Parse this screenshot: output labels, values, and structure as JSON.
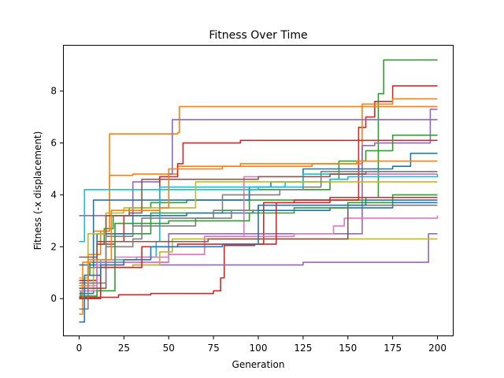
{
  "chart_data": {
    "type": "line",
    "title": "Fitness Over Time",
    "xlabel": "Generation",
    "ylabel": "Fitness (-x displacement)",
    "xlim": [
      -9,
      209
    ],
    "ylim": [
      -1.45,
      9.75
    ],
    "x_ticks": [
      0,
      25,
      50,
      75,
      100,
      125,
      150,
      175,
      200
    ],
    "y_ticks": [
      0,
      2,
      4,
      6,
      8
    ],
    "grid": false,
    "legend": "none",
    "step": "post",
    "series": [
      {
        "color": "#2ca02c",
        "points": [
          [
            0,
            0
          ],
          [
            1,
            0.3
          ],
          [
            3,
            0.9
          ],
          [
            6,
            1.4
          ],
          [
            10,
            2.1
          ],
          [
            14,
            2.7
          ],
          [
            19,
            3.2
          ],
          [
            28,
            3.5
          ],
          [
            40,
            3.7
          ],
          [
            60,
            3.8
          ],
          [
            100,
            3.8
          ],
          [
            140,
            3.8
          ],
          [
            160,
            3.9
          ],
          [
            167,
            7.9
          ],
          [
            170,
            9.2
          ],
          [
            200,
            9.2
          ]
        ]
      },
      {
        "color": "#d62728",
        "points": [
          [
            0,
            0.05
          ],
          [
            20,
            0.05
          ],
          [
            22,
            0.15
          ],
          [
            40,
            0.2
          ],
          [
            60,
            0.2
          ],
          [
            75,
            0.3
          ],
          [
            79,
            0.8
          ],
          [
            81,
            2.05
          ],
          [
            98,
            2.1
          ],
          [
            103,
            3.7
          ],
          [
            120,
            3.8
          ],
          [
            150,
            3.8
          ],
          [
            156,
            6.6
          ],
          [
            160,
            7.0
          ],
          [
            165,
            7.6
          ],
          [
            175,
            8.2
          ],
          [
            200,
            8.2
          ]
        ]
      },
      {
        "color": "#ff7f0e",
        "points": [
          [
            0,
            -0.6
          ],
          [
            2,
            1.4
          ],
          [
            8,
            2.6
          ],
          [
            15,
            3.3
          ],
          [
            17,
            6.35
          ],
          [
            55,
            6.4
          ],
          [
            56,
            7.4
          ],
          [
            200,
            7.4
          ]
        ]
      },
      {
        "color": "#ff7f0e",
        "points": [
          [
            0,
            0.5
          ],
          [
            5,
            1.7
          ],
          [
            12,
            2.6
          ],
          [
            17,
            4.75
          ],
          [
            30,
            4.8
          ],
          [
            50,
            4.8
          ],
          [
            55,
            5.1
          ],
          [
            90,
            5.2
          ],
          [
            155,
            5.2
          ],
          [
            158,
            7.5
          ],
          [
            175,
            7.7
          ],
          [
            200,
            7.7
          ]
        ]
      },
      {
        "color": "#9467bd",
        "points": [
          [
            0,
            3.2
          ],
          [
            20,
            3.2
          ],
          [
            30,
            4.5
          ],
          [
            45,
            4.7
          ],
          [
            50,
            4.8
          ],
          [
            52,
            6.9
          ],
          [
            80,
            6.9
          ],
          [
            160,
            6.9
          ],
          [
            200,
            6.9
          ]
        ]
      },
      {
        "color": "#9467bd",
        "points": [
          [
            0,
            0.3
          ],
          [
            10,
            1.4
          ],
          [
            40,
            1.4
          ],
          [
            50,
            2.5
          ],
          [
            150,
            2.5
          ],
          [
            158,
            5.9
          ],
          [
            165,
            6.0
          ],
          [
            195,
            6.0
          ],
          [
            196,
            7.3
          ],
          [
            200,
            7.3
          ]
        ]
      },
      {
        "color": "#9467bd",
        "points": [
          [
            0,
            0.6
          ],
          [
            10,
            1.2
          ],
          [
            30,
            1.3
          ],
          [
            60,
            1.3
          ],
          [
            100,
            1.3
          ],
          [
            125,
            1.4
          ],
          [
            185,
            1.4
          ],
          [
            195,
            2.5
          ],
          [
            200,
            2.5
          ]
        ]
      },
      {
        "color": "#d62728",
        "points": [
          [
            0,
            0.7
          ],
          [
            10,
            2.2
          ],
          [
            25,
            3.2
          ],
          [
            45,
            4.7
          ],
          [
            55,
            5.2
          ],
          [
            58,
            6.0
          ],
          [
            90,
            6.1
          ],
          [
            160,
            6.1
          ],
          [
            200,
            6.1
          ]
        ]
      },
      {
        "color": "#2ca02c",
        "points": [
          [
            0,
            0
          ],
          [
            10,
            2.5
          ],
          [
            40,
            3.3
          ],
          [
            80,
            3.4
          ],
          [
            95,
            4.2
          ],
          [
            140,
            4.6
          ],
          [
            145,
            5.3
          ],
          [
            160,
            5.7
          ],
          [
            175,
            6.3
          ],
          [
            200,
            6.3
          ]
        ]
      },
      {
        "color": "#1f77b4",
        "points": [
          [
            0,
            0.2
          ],
          [
            8,
            3.8
          ],
          [
            40,
            3.8
          ],
          [
            95,
            4.3
          ],
          [
            107,
            4.5
          ],
          [
            125,
            5.0
          ],
          [
            175,
            5.1
          ],
          [
            185,
            5.6
          ],
          [
            200,
            5.6
          ]
        ]
      },
      {
        "color": "#1f77b4",
        "points": [
          [
            0,
            1.3
          ],
          [
            10,
            2.5
          ],
          [
            30,
            3.2
          ],
          [
            60,
            3.3
          ],
          [
            97,
            3.4
          ],
          [
            140,
            3.5
          ],
          [
            175,
            3.7
          ],
          [
            200,
            3.7
          ]
        ]
      },
      {
        "color": "#17becf",
        "points": [
          [
            0,
            2.2
          ],
          [
            3,
            4.2
          ],
          [
            15,
            4.2
          ],
          [
            60,
            4.2
          ],
          [
            100,
            4.3
          ],
          [
            115,
            4.5
          ],
          [
            140,
            4.6
          ],
          [
            150,
            4.7
          ],
          [
            200,
            4.8
          ]
        ]
      },
      {
        "color": "#17becf",
        "points": [
          [
            0,
            0.4
          ],
          [
            12,
            1.5
          ],
          [
            32,
            1.6
          ],
          [
            43,
            2.2
          ],
          [
            45,
            4.3
          ],
          [
            100,
            4.3
          ],
          [
            125,
            4.8
          ],
          [
            200,
            4.8
          ]
        ]
      },
      {
        "color": "#bcbd22",
        "points": [
          [
            0,
            0.8
          ],
          [
            5,
            2.5
          ],
          [
            15,
            3.3
          ],
          [
            25,
            3.5
          ],
          [
            50,
            3.5
          ],
          [
            65,
            4.5
          ],
          [
            100,
            4.5
          ],
          [
            150,
            4.5
          ],
          [
            200,
            4.5
          ]
        ]
      },
      {
        "color": "#bcbd22",
        "points": [
          [
            0,
            0.3
          ],
          [
            8,
            1.2
          ],
          [
            30,
            1.3
          ],
          [
            45,
            1.8
          ],
          [
            52,
            2.3
          ],
          [
            110,
            2.3
          ],
          [
            150,
            2.3
          ],
          [
            200,
            2.3
          ]
        ]
      },
      {
        "color": "#e377c2",
        "points": [
          [
            0,
            0.3
          ],
          [
            10,
            1.5
          ],
          [
            20,
            1.6
          ],
          [
            50,
            1.7
          ],
          [
            70,
            2.4
          ],
          [
            90,
            2.4
          ],
          [
            92,
            4.7
          ],
          [
            100,
            4.7
          ],
          [
            140,
            4.8
          ],
          [
            160,
            4.8
          ],
          [
            200,
            4.8
          ]
        ]
      },
      {
        "color": "#e377c2",
        "points": [
          [
            0,
            0.5
          ],
          [
            10,
            1.3
          ],
          [
            25,
            1.4
          ],
          [
            40,
            1.4
          ],
          [
            50,
            1.7
          ],
          [
            70,
            2.4
          ],
          [
            100,
            2.4
          ],
          [
            120,
            2.5
          ],
          [
            142,
            2.8
          ],
          [
            148,
            3.1
          ],
          [
            175,
            3.1
          ],
          [
            200,
            3.2
          ]
        ]
      },
      {
        "color": "#8c564b",
        "points": [
          [
            0,
            0.4
          ],
          [
            15,
            3.2
          ],
          [
            28,
            3.3
          ],
          [
            35,
            4.6
          ],
          [
            100,
            4.7
          ],
          [
            140,
            4.8
          ],
          [
            160,
            4.9
          ],
          [
            185,
            4.9
          ],
          [
            200,
            4.9
          ]
        ]
      },
      {
        "color": "#8c564b",
        "points": [
          [
            0,
            1.6
          ],
          [
            10,
            2.1
          ],
          [
            20,
            2.2
          ],
          [
            55,
            2.2
          ],
          [
            72,
            2.3
          ],
          [
            100,
            2.3
          ],
          [
            135,
            2.3
          ],
          [
            150,
            3.6
          ],
          [
            200,
            3.6
          ]
        ]
      },
      {
        "color": "#7f7f7f",
        "points": [
          [
            0,
            0.6
          ],
          [
            15,
            2.4
          ],
          [
            30,
            2.8
          ],
          [
            52,
            2.8
          ],
          [
            65,
            3.1
          ],
          [
            75,
            3.4
          ],
          [
            80,
            4.0
          ],
          [
            100,
            4.0
          ],
          [
            112,
            4.2
          ],
          [
            125,
            4.3
          ],
          [
            135,
            4.9
          ],
          [
            160,
            4.9
          ],
          [
            200,
            4.9
          ]
        ]
      },
      {
        "color": "#7f7f7f",
        "points": [
          [
            0,
            -0.4
          ],
          [
            5,
            1.2
          ],
          [
            15,
            2.0
          ],
          [
            30,
            2.3
          ],
          [
            35,
            3.1
          ],
          [
            70,
            3.1
          ],
          [
            85,
            3.4
          ],
          [
            100,
            3.6
          ],
          [
            200,
            3.6
          ]
        ]
      },
      {
        "color": "#2ca02c",
        "points": [
          [
            0,
            0.1
          ],
          [
            10,
            0.3
          ],
          [
            20,
            2.9
          ],
          [
            35,
            2.9
          ],
          [
            50,
            3.0
          ],
          [
            75,
            3.0
          ],
          [
            95,
            3.3
          ],
          [
            120,
            3.5
          ],
          [
            150,
            3.7
          ],
          [
            175,
            4.0
          ],
          [
            200,
            4.0
          ]
        ]
      },
      {
        "color": "#d62728",
        "points": [
          [
            0,
            0
          ],
          [
            12,
            1.2
          ],
          [
            35,
            2.0
          ],
          [
            55,
            2.1
          ],
          [
            100,
            2.1
          ],
          [
            110,
            3.7
          ],
          [
            140,
            3.9
          ],
          [
            190,
            3.9
          ],
          [
            200,
            3.9
          ]
        ]
      },
      {
        "color": "#1f77b4",
        "points": [
          [
            0,
            -0.9
          ],
          [
            3,
            0.9
          ],
          [
            12,
            1.3
          ],
          [
            25,
            1.5
          ],
          [
            40,
            2.0
          ],
          [
            60,
            2.0
          ],
          [
            80,
            2.1
          ],
          [
            100,
            3.6
          ],
          [
            160,
            3.8
          ],
          [
            200,
            3.8
          ]
        ]
      },
      {
        "color": "#ff7f0e",
        "points": [
          [
            0,
            0.5
          ],
          [
            5,
            1.5
          ],
          [
            18,
            3.4
          ],
          [
            45,
            3.5
          ],
          [
            50,
            5.0
          ],
          [
            80,
            5.1
          ],
          [
            100,
            5.1
          ],
          [
            130,
            5.2
          ],
          [
            150,
            5.2
          ],
          [
            155,
            5.3
          ],
          [
            160,
            5.3
          ],
          [
            200,
            5.3
          ]
        ]
      }
    ]
  }
}
